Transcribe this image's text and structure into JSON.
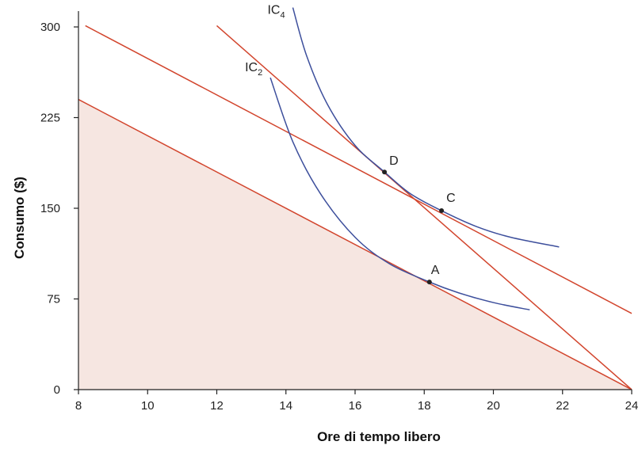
{
  "chart_data": {
    "type": "line",
    "xlabel": "Ore di tempo libero",
    "ylabel": "Consumo ($)",
    "xlim": [
      8,
      24
    ],
    "ylim": [
      0,
      300
    ],
    "x_ticks": [
      8,
      10,
      12,
      14,
      16,
      18,
      20,
      22,
      24
    ],
    "y_ticks": [
      0,
      75,
      150,
      225,
      300
    ],
    "grid": false,
    "colors": {
      "budget": "#d2452d",
      "indifference": "#3d4f9c",
      "feasible_fill": "#f6e6e1",
      "axis": "#222222",
      "point": "#222222"
    },
    "feasible_set": {
      "points": [
        [
          8,
          240
        ],
        [
          24,
          0
        ],
        [
          8,
          0
        ]
      ]
    },
    "budget_lines": [
      {
        "x": [
          8,
          24
        ],
        "y": [
          240,
          0
        ]
      },
      {
        "x": [
          8.2,
          24
        ],
        "y": [
          301,
          63
        ]
      },
      {
        "x": [
          12,
          24
        ],
        "y": [
          301,
          0
        ]
      }
    ],
    "indifference_curves": [
      {
        "label_main": "IC",
        "label_sub": "2",
        "x": [
          13.55,
          14.2,
          15.0,
          16.0,
          17.0,
          18.15,
          19.0,
          20.0,
          21.05
        ],
        "y": [
          258,
          205,
          162,
          126,
          104,
          89,
          80,
          72,
          66
        ]
      },
      {
        "label_main": "IC",
        "label_sub": "4",
        "x": [
          14.2,
          14.6,
          15.2,
          16.0,
          16.85,
          17.6,
          18.5,
          19.5,
          20.5,
          21.9
        ],
        "y": [
          316,
          276,
          236,
          202,
          180,
          162,
          148,
          135,
          126,
          118
        ]
      }
    ],
    "points": [
      {
        "label": "A",
        "x": 18.15,
        "y": 89
      },
      {
        "label": "D",
        "x": 16.85,
        "y": 180
      },
      {
        "label": "C",
        "x": 18.5,
        "y": 148
      }
    ]
  }
}
